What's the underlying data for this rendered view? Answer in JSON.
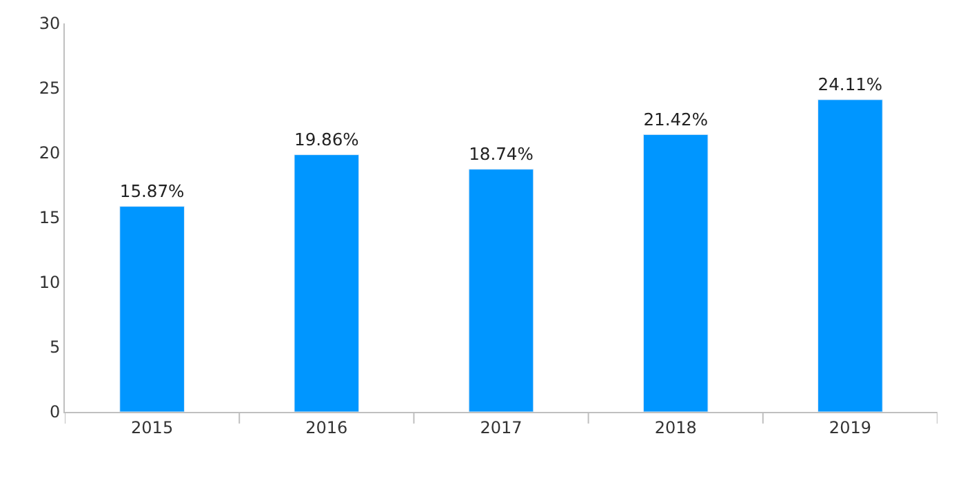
{
  "chart_data": {
    "type": "bar",
    "categories": [
      "2015",
      "2016",
      "2017",
      "2018",
      "2019"
    ],
    "values": [
      15.87,
      19.86,
      18.74,
      21.42,
      24.11
    ],
    "value_labels": [
      "15.87%",
      "19.86%",
      "18.74%",
      "21.42%",
      "24.11%"
    ],
    "color": "#0096ff",
    "ylim": [
      0,
      30
    ],
    "yticks": [
      0,
      5,
      10,
      15,
      20,
      25,
      30
    ],
    "legend": false
  }
}
